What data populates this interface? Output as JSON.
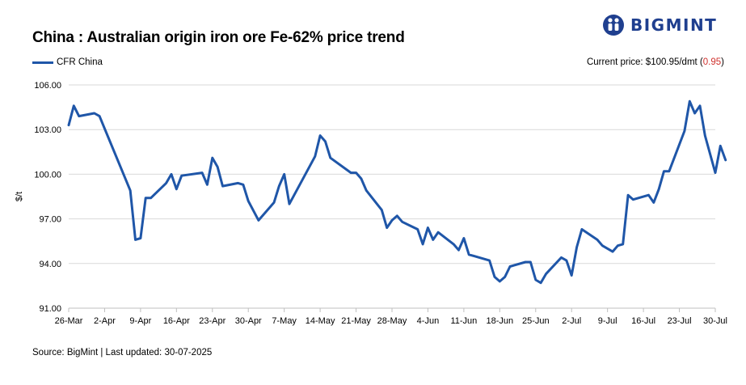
{
  "title": "China : Australian origin iron ore Fe-62% price trend",
  "logo": {
    "text": "BIGMINT",
    "icon": "bigmint-logo-icon"
  },
  "legend": {
    "label": "CFR China"
  },
  "current_price": {
    "label": "Current price: $100.95/dmt (",
    "change": "0.95",
    "suffix": ")"
  },
  "source": "Source: BigMint | Last updated: 30-07-2025",
  "colors": {
    "line": "#1f56a8",
    "grid": "#d9d9d9",
    "axis": "#bfbfbf",
    "negative": "#d0312d",
    "brand": "#1f3f8f"
  },
  "chart_data": {
    "type": "line",
    "ylabel": "$/t",
    "ylim": [
      91,
      106
    ],
    "yticks": [
      "91.00",
      "94.00",
      "97.00",
      "100.00",
      "103.00",
      "106.00"
    ],
    "xticks": [
      "26-Mar",
      "2-Apr",
      "9-Apr",
      "16-Apr",
      "23-Apr",
      "30-Apr",
      "7-May",
      "14-May",
      "21-May",
      "28-May",
      "4-Jun",
      "11-Jun",
      "18-Jun",
      "25-Jun",
      "2-Jul",
      "9-Jul",
      "16-Jul",
      "23-Jul",
      "30-Jul"
    ],
    "grid": true,
    "series": [
      {
        "name": "CFR China",
        "points": [
          [
            "2025-03-26",
            103.3
          ],
          [
            "2025-03-27",
            104.6
          ],
          [
            "2025-03-28",
            103.9
          ],
          [
            "2025-03-31",
            104.1
          ],
          [
            "2025-04-01",
            103.9
          ],
          [
            "2025-04-07",
            98.9
          ],
          [
            "2025-04-08",
            95.6
          ],
          [
            "2025-04-09",
            95.7
          ],
          [
            "2025-04-10",
            98.4
          ],
          [
            "2025-04-11",
            98.4
          ],
          [
            "2025-04-14",
            99.4
          ],
          [
            "2025-04-15",
            100.0
          ],
          [
            "2025-04-16",
            99.0
          ],
          [
            "2025-04-17",
            99.9
          ],
          [
            "2025-04-21",
            100.1
          ],
          [
            "2025-04-22",
            99.3
          ],
          [
            "2025-04-23",
            101.1
          ],
          [
            "2025-04-24",
            100.5
          ],
          [
            "2025-04-25",
            99.2
          ],
          [
            "2025-04-28",
            99.4
          ],
          [
            "2025-04-29",
            99.3
          ],
          [
            "2025-04-30",
            98.2
          ],
          [
            "2025-05-02",
            96.9
          ],
          [
            "2025-05-05",
            98.1
          ],
          [
            "2025-05-06",
            99.2
          ],
          [
            "2025-05-07",
            100.0
          ],
          [
            "2025-05-08",
            98.0
          ],
          [
            "2025-05-13",
            101.2
          ],
          [
            "2025-05-14",
            102.6
          ],
          [
            "2025-05-15",
            102.2
          ],
          [
            "2025-05-16",
            101.1
          ],
          [
            "2025-05-20",
            100.1
          ],
          [
            "2025-05-21",
            100.1
          ],
          [
            "2025-05-22",
            99.7
          ],
          [
            "2025-05-23",
            98.9
          ],
          [
            "2025-05-26",
            97.6
          ],
          [
            "2025-05-27",
            96.4
          ],
          [
            "2025-05-28",
            96.9
          ],
          [
            "2025-05-29",
            97.2
          ],
          [
            "2025-05-30",
            96.8
          ],
          [
            "2025-06-02",
            96.3
          ],
          [
            "2025-06-03",
            95.3
          ],
          [
            "2025-06-04",
            96.4
          ],
          [
            "2025-06-05",
            95.6
          ],
          [
            "2025-06-06",
            96.1
          ],
          [
            "2025-06-09",
            95.3
          ],
          [
            "2025-06-10",
            94.9
          ],
          [
            "2025-06-11",
            95.7
          ],
          [
            "2025-06-12",
            94.6
          ],
          [
            "2025-06-13",
            94.5
          ],
          [
            "2025-06-16",
            94.2
          ],
          [
            "2025-06-17",
            93.1
          ],
          [
            "2025-06-18",
            92.8
          ],
          [
            "2025-06-19",
            93.1
          ],
          [
            "2025-06-20",
            93.8
          ],
          [
            "2025-06-23",
            94.1
          ],
          [
            "2025-06-24",
            94.1
          ],
          [
            "2025-06-25",
            92.9
          ],
          [
            "2025-06-26",
            92.7
          ],
          [
            "2025-06-27",
            93.3
          ],
          [
            "2025-06-30",
            94.4
          ],
          [
            "2025-07-01",
            94.2
          ],
          [
            "2025-07-02",
            93.2
          ],
          [
            "2025-07-03",
            95.1
          ],
          [
            "2025-07-04",
            96.3
          ],
          [
            "2025-07-07",
            95.6
          ],
          [
            "2025-07-08",
            95.2
          ],
          [
            "2025-07-10",
            94.8
          ],
          [
            "2025-07-11",
            95.2
          ],
          [
            "2025-07-12",
            95.3
          ],
          [
            "2025-07-13",
            98.6
          ],
          [
            "2025-07-14",
            98.3
          ],
          [
            "2025-07-17",
            98.6
          ],
          [
            "2025-07-18",
            98.1
          ],
          [
            "2025-07-19",
            99.0
          ],
          [
            "2025-07-20",
            100.2
          ],
          [
            "2025-07-21",
            100.2
          ],
          [
            "2025-07-24",
            102.9
          ],
          [
            "2025-07-25",
            104.9
          ],
          [
            "2025-07-26",
            104.1
          ],
          [
            "2025-07-27",
            104.6
          ],
          [
            "2025-07-28",
            102.6
          ],
          [
            "2025-07-30",
            100.1
          ],
          [
            "2025-07-31",
            101.9
          ],
          [
            "2025-08-01",
            100.95
          ]
        ]
      }
    ]
  }
}
